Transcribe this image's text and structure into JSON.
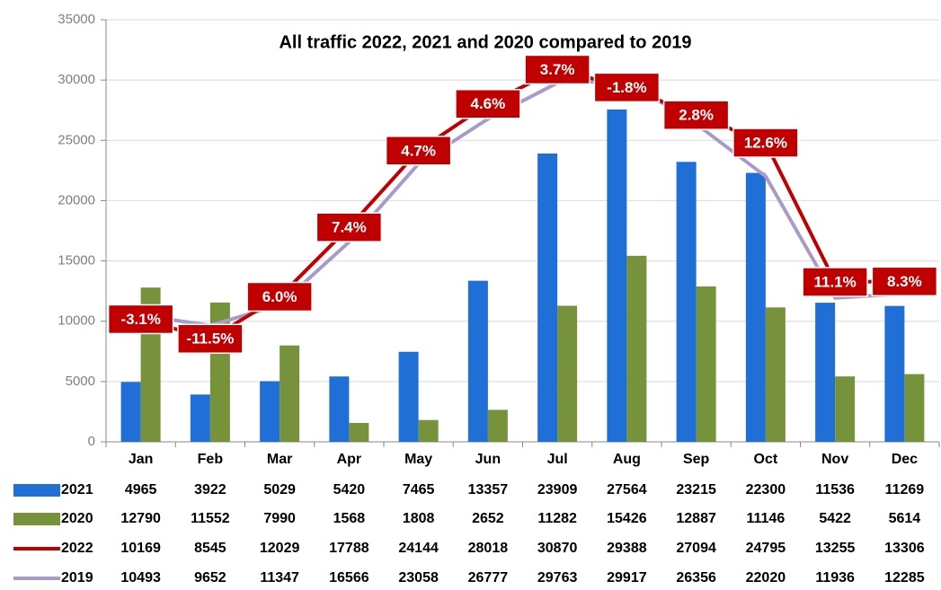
{
  "chart_data": {
    "type": "bar+line",
    "title": "All traffic 2022, 2021 and 2020 compared to 2019",
    "categories": [
      "Jan",
      "Feb",
      "Mar",
      "Apr",
      "May",
      "Jun",
      "Jul",
      "Aug",
      "Sep",
      "Oct",
      "Nov",
      "Dec"
    ],
    "ylim": [
      0,
      35000
    ],
    "yticks": [
      0,
      5000,
      10000,
      15000,
      20000,
      25000,
      30000,
      35000
    ],
    "grid": true,
    "series": [
      {
        "name": "2021",
        "type": "bar",
        "color": "#1f6fd6",
        "values": [
          4965,
          3922,
          5029,
          5420,
          7465,
          13357,
          23909,
          27564,
          23215,
          22300,
          11536,
          11269
        ]
      },
      {
        "name": "2020",
        "type": "bar",
        "color": "#76933c",
        "values": [
          12790,
          11552,
          7990,
          1568,
          1808,
          2652,
          11282,
          15426,
          12887,
          11146,
          5422,
          5614
        ]
      },
      {
        "name": "2022",
        "type": "line",
        "color": "#c00000",
        "values": [
          10169,
          8545,
          12029,
          17788,
          24144,
          28018,
          30870,
          29388,
          27094,
          24795,
          13255,
          13306
        ],
        "annotations": [
          "-3.1%",
          "-11.5%",
          "6.0%",
          "7.4%",
          "4.7%",
          "4.6%",
          "3.7%",
          "-1.8%",
          "2.8%",
          "12.6%",
          "11.1%",
          "8.3%"
        ]
      },
      {
        "name": "2019",
        "type": "line",
        "color": "#a99bc9",
        "values": [
          10493,
          9652,
          11347,
          16566,
          23058,
          26777,
          29763,
          29917,
          26356,
          22020,
          11936,
          12285
        ]
      }
    ]
  }
}
